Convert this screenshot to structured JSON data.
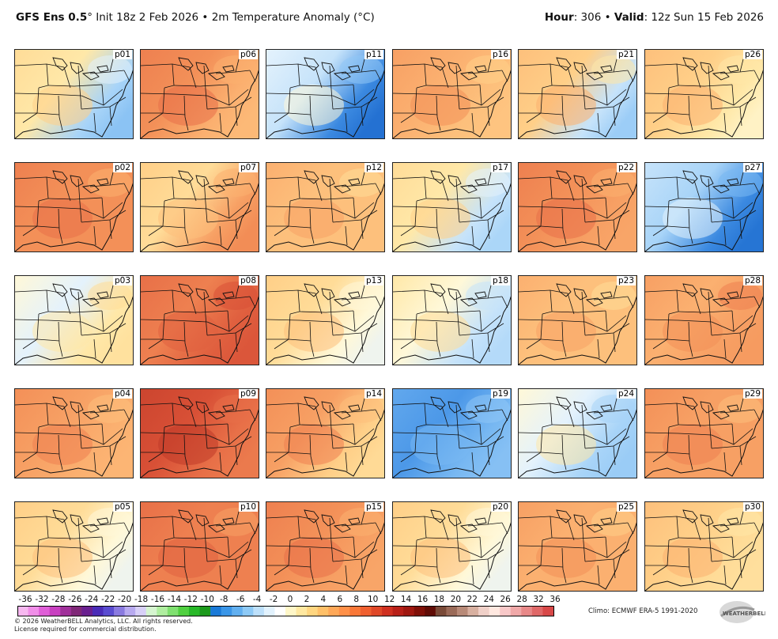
{
  "header": {
    "model": "GFS Ens 0.5",
    "deg": "°",
    "init": "Init 18z 2 Feb 2026",
    "bullet": "•",
    "field": "2m Temperature Anomaly (°C)",
    "hour_label": "Hour",
    "hour_value": ": 306",
    "valid_label": "Valid",
    "valid_value": ": 12z Sun 15 Feb 2026"
  },
  "panels": [
    {
      "label": "p01",
      "anomaly_c": 2,
      "east_trend": -4
    },
    {
      "label": "p06",
      "anomaly_c": 8,
      "east_trend": -2
    },
    {
      "label": "p11",
      "anomaly_c": -1,
      "east_trend": -6
    },
    {
      "label": "p16",
      "anomaly_c": 6,
      "east_trend": -1
    },
    {
      "label": "p21",
      "anomaly_c": 4,
      "east_trend": -5
    },
    {
      "label": "p26",
      "anomaly_c": 4,
      "east_trend": -2
    },
    {
      "label": "p02",
      "anomaly_c": 8,
      "east_trend": 0
    },
    {
      "label": "p07",
      "anomaly_c": 3,
      "east_trend": 4
    },
    {
      "label": "p12",
      "anomaly_c": 5,
      "east_trend": 0
    },
    {
      "label": "p17",
      "anomaly_c": 2,
      "east_trend": -3
    },
    {
      "label": "p22",
      "anomaly_c": 8,
      "east_trend": -1
    },
    {
      "label": "p27",
      "anomaly_c": -2,
      "east_trend": -5
    },
    {
      "label": "p03",
      "anomaly_c": 0,
      "east_trend": 2
    },
    {
      "label": "p08",
      "anomaly_c": 9,
      "east_trend": 2
    },
    {
      "label": "p13",
      "anomaly_c": 3,
      "east_trend": -2
    },
    {
      "label": "p18",
      "anomaly_c": 1,
      "east_trend": -2
    },
    {
      "label": "p23",
      "anomaly_c": 5,
      "east_trend": 0
    },
    {
      "label": "p28",
      "anomaly_c": 6,
      "east_trend": 1
    },
    {
      "label": "p04",
      "anomaly_c": 7,
      "east_trend": -1
    },
    {
      "label": "p09",
      "anomaly_c": 12,
      "east_trend": -2
    },
    {
      "label": "p14",
      "anomaly_c": 7,
      "east_trend": -3
    },
    {
      "label": "p19",
      "anomaly_c": -6,
      "east_trend": 2
    },
    {
      "label": "p24",
      "anomaly_c": 0,
      "east_trend": -2
    },
    {
      "label": "p29",
      "anomaly_c": 7,
      "east_trend": 0
    },
    {
      "label": "p05",
      "anomaly_c": 3,
      "east_trend": -2
    },
    {
      "label": "p10",
      "anomaly_c": 9,
      "east_trend": 0
    },
    {
      "label": "p15",
      "anomaly_c": 8,
      "east_trend": -1
    },
    {
      "label": "p20",
      "anomaly_c": 3,
      "east_trend": -2
    },
    {
      "label": "p25",
      "anomaly_c": 6,
      "east_trend": 0
    },
    {
      "label": "p30",
      "anomaly_c": 4,
      "east_trend": -1
    }
  ],
  "colorbar": {
    "ticks": [
      "-36",
      "-32",
      "-28",
      "-26",
      "-24",
      "-22",
      "-20",
      "-18",
      "-16",
      "-14",
      "-12",
      "-10",
      "-8",
      "-6",
      "-4",
      "-2",
      "0",
      "2",
      "4",
      "6",
      "8",
      "10",
      "12",
      "14",
      "16",
      "18",
      "20",
      "22",
      "24",
      "26",
      "28",
      "32",
      "36"
    ],
    "colors": [
      "#f7b8f0",
      "#f08ee8",
      "#e05fd8",
      "#c83fc0",
      "#a0309a",
      "#802878",
      "#6a2090",
      "#4a2cb8",
      "#5a4cd0",
      "#8a7ae0",
      "#b8aaf0",
      "#d8d0f8",
      "#d6f5d0",
      "#b0eea0",
      "#80e070",
      "#50d040",
      "#28b828",
      "#1c9a1c",
      "#1a7ad8",
      "#3a96e8",
      "#62b0f0",
      "#8ecaf6",
      "#bde0fa",
      "#e2f2fd",
      "#ffffff",
      "#fff7c8",
      "#ffe8a0",
      "#ffd680",
      "#ffc068",
      "#ffa858",
      "#ff9048",
      "#fa7838",
      "#f06030",
      "#e04828",
      "#d03020",
      "#b82018",
      "#a01810",
      "#801008",
      "#600c06",
      "#7a4a38",
      "#9a6a58",
      "#b88a78",
      "#d8b0a0",
      "#f0d0c8",
      "#ffe8e0",
      "#f8c8c8",
      "#f0a8a8",
      "#e88888",
      "#e06868",
      "#d84848"
    ]
  },
  "footer": {
    "copyright": "© 2026 WeatherBELL Analytics, LLC. All rights reserved.",
    "license": "License required for commercial distribution.",
    "climo": "Climo: ECMWF ERA-5 1991-2020",
    "logo": "WEATHERBELL"
  }
}
